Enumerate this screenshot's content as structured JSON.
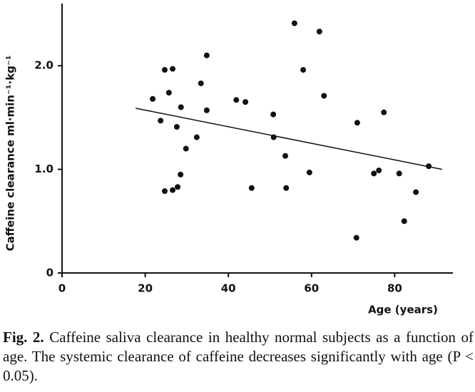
{
  "chart_data": {
    "type": "scatter",
    "y_label": "Caffeine clearance   ml·min⁻¹·kg⁻¹",
    "x_label": "Age (years)",
    "x": [
      21.8,
      23.7,
      24.7,
      26.6,
      25.7,
      24.7,
      26.6,
      27.6,
      27.8,
      28.6,
      28.5,
      29.8,
      32.4,
      33.4,
      34.8,
      34.8,
      41.9,
      44.1,
      45.6,
      50.8,
      50.9,
      53.7,
      53.9,
      55.9,
      58.0,
      59.5,
      61.9,
      63.0,
      71.0,
      70.8,
      75.0,
      76.2,
      77.4,
      81.1,
      82.3,
      85.1,
      88.2
    ],
    "y": [
      1.68,
      1.47,
      1.96,
      1.97,
      1.74,
      0.79,
      0.8,
      1.41,
      0.83,
      1.6,
      0.95,
      1.2,
      1.31,
      1.83,
      2.1,
      1.57,
      1.67,
      1.65,
      0.82,
      1.53,
      1.31,
      1.13,
      0.82,
      2.41,
      1.96,
      0.97,
      2.33,
      1.71,
      1.45,
      0.34,
      0.96,
      0.99,
      1.55,
      0.96,
      0.5,
      0.78,
      1.03
    ],
    "color": "#111111",
    "trendline": {
      "x": [
        17.7,
        91.4
      ],
      "y": [
        1.59,
        1.0
      ]
    },
    "xlim": [
      0,
      94
    ],
    "xticks": [
      0,
      20,
      40,
      60,
      80
    ],
    "ylim": [
      0,
      2.6
    ],
    "yticks": [
      0,
      {
        "value": 1,
        "label": "1.0"
      },
      {
        "value": 2,
        "label": "2.0"
      }
    ]
  },
  "caption_label": "Fig. 2.",
  "caption": "Caffeine saliva clearance in healthy normal subjects as a function of age. The systemic clearance of caffeine decreases significantly with age (P < 0.05)."
}
